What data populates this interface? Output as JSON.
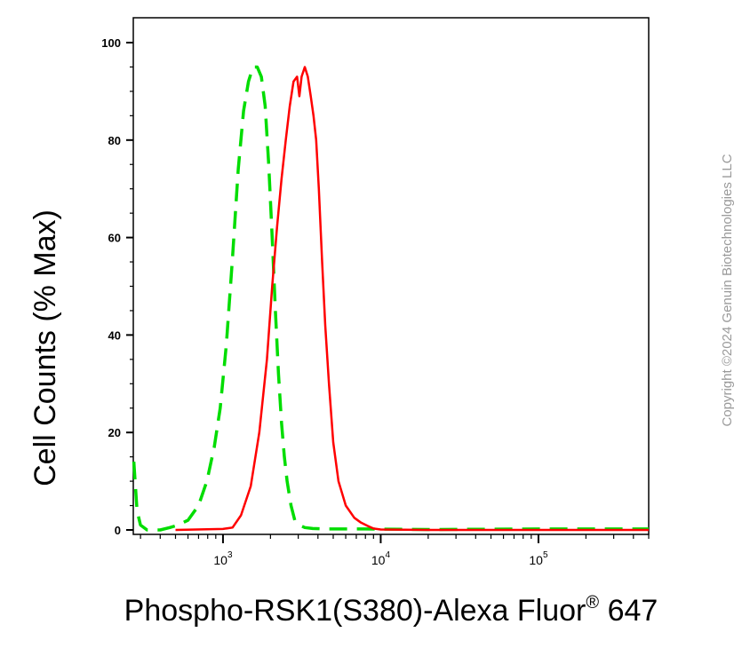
{
  "chart_data": {
    "type": "line",
    "title": "",
    "xlabel": "Phospho-RSK1(S380)-Alexa Fluor",
    "xlabel_superscript": "®",
    "xlabel_suffix": "647",
    "ylabel": "Cell Counts (% Max)",
    "x_scale": "log",
    "xlim": [
      270,
      500000
    ],
    "ylim": [
      0,
      100
    ],
    "y_ticks": [
      "0",
      "20",
      "40",
      "60",
      "80",
      "100"
    ],
    "x_tick_labels": [
      {
        "base": "10",
        "exp": "3",
        "value": 1000
      },
      {
        "base": "10",
        "exp": "4",
        "value": 10000
      },
      {
        "base": "10",
        "exp": "5",
        "value": 100000
      }
    ],
    "grid": false,
    "series": [
      {
        "color": "#00dd00",
        "style": "dashed",
        "x": [
          272,
          285,
          300,
          330,
          360,
          400,
          460,
          520,
          600,
          700,
          790,
          880,
          960,
          1050,
          1150,
          1250,
          1350,
          1450,
          1550,
          1650,
          1750,
          1850,
          1950,
          2050,
          2150,
          2250,
          2350,
          2450,
          2550,
          2700,
          2850,
          3050,
          3300,
          3700,
          4500,
          8000,
          20000,
          100000,
          500000
        ],
        "y": [
          14,
          4,
          1,
          0,
          0,
          0,
          0.5,
          1,
          2,
          5,
          10,
          17,
          25,
          38,
          56,
          74,
          86,
          92,
          95,
          95,
          93,
          87,
          75,
          60,
          45,
          32,
          22,
          15,
          10,
          5,
          2,
          1,
          0.5,
          0.3,
          0.2,
          0.2,
          0.1,
          0.2,
          0.2
        ]
      },
      {
        "color": "#ff0000",
        "style": "solid",
        "x": [
          500,
          1000,
          1150,
          1300,
          1500,
          1700,
          1900,
          2050,
          2200,
          2350,
          2500,
          2650,
          2800,
          2950,
          3050,
          3150,
          3300,
          3450,
          3600,
          3750,
          3900,
          4050,
          4250,
          4450,
          4700,
          5000,
          5400,
          6000,
          6800,
          7500,
          8300,
          9000,
          10000,
          20000,
          100000,
          500000
        ],
        "y": [
          0,
          0.2,
          0.5,
          3,
          9,
          20,
          35,
          50,
          62,
          72,
          80,
          87,
          92,
          93,
          89,
          93,
          95,
          93,
          89,
          85,
          80,
          70,
          55,
          42,
          30,
          18,
          10,
          5,
          2.5,
          1.5,
          0.8,
          0.3,
          0.1,
          0,
          0,
          0
        ]
      }
    ]
  },
  "watermark": {
    "text": "Copyright ©2024 Genuin Biotechnologies LLC"
  }
}
